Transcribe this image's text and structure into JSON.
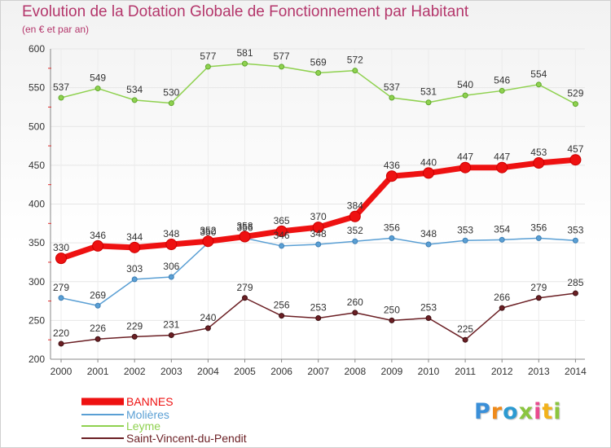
{
  "header": {
    "title": "Evolution de la Dotation Globale de Fonctionnement par Habitant",
    "subtitle": "(en € et par an)"
  },
  "logo": {
    "text": "Proxiti"
  },
  "chart_data": {
    "type": "line",
    "title": "Evolution de la Dotation Globale de Fonctionnement par Habitant",
    "subtitle": "(en € et par an)",
    "xlabel": "",
    "ylabel": "",
    "x": [
      "2000",
      "2001",
      "2002",
      "2003",
      "2004",
      "2005",
      "2006",
      "2007",
      "2008",
      "2009",
      "2010",
      "2011",
      "2012",
      "2013",
      "2014"
    ],
    "ylim": [
      200,
      600
    ],
    "yticks": [
      200,
      250,
      300,
      350,
      400,
      450,
      500,
      550,
      600
    ],
    "legend_position": "bottom-left",
    "series": [
      {
        "name": "BANNES",
        "color": "#ee1111",
        "values": [
          330,
          346,
          344,
          348,
          352,
          358,
          365,
          370,
          384,
          436,
          440,
          447,
          447,
          453,
          457
        ]
      },
      {
        "name": "Molières",
        "color": "#5a9fd4",
        "values": [
          279,
          269,
          303,
          306,
          350,
          356,
          346,
          348,
          352,
          356,
          348,
          353,
          354,
          356,
          353
        ]
      },
      {
        "name": "Leyme",
        "color": "#8fd14f",
        "values": [
          537,
          549,
          534,
          530,
          577,
          581,
          577,
          569,
          572,
          537,
          531,
          540,
          546,
          554,
          529
        ]
      },
      {
        "name": "Saint-Vincent-du-Pendit",
        "color": "#6b1f24",
        "values": [
          220,
          226,
          229,
          231,
          240,
          279,
          256,
          253,
          260,
          250,
          253,
          225,
          266,
          279,
          285
        ]
      }
    ]
  }
}
